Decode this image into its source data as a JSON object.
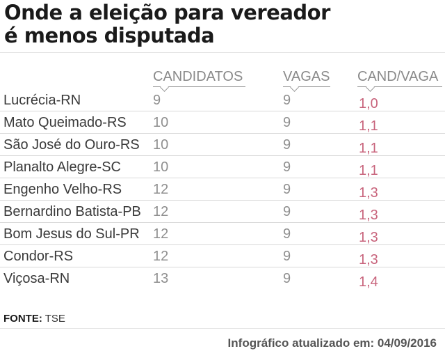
{
  "title_line1": "Onde a eleição para vereador",
  "title_line2": "é menos disputada",
  "chart_data": {
    "type": "table",
    "columns": [
      "",
      "CANDIDATOS",
      "VAGAS",
      "CAND/VAGA"
    ],
    "rows": [
      {
        "city": "Lucrécia-RN",
        "candidatos": "9",
        "vagas": "9",
        "cand_vaga": "1,0"
      },
      {
        "city": "Mato Queimado-RS",
        "candidatos": "10",
        "vagas": "9",
        "cand_vaga": "1,1"
      },
      {
        "city": "São José do Ouro-RS",
        "candidatos": "10",
        "vagas": "9",
        "cand_vaga": "1,1"
      },
      {
        "city": "Planalto Alegre-SC",
        "candidatos": "10",
        "vagas": "9",
        "cand_vaga": "1,1"
      },
      {
        "city": "Engenho Velho-RS",
        "candidatos": "12",
        "vagas": "9",
        "cand_vaga": "1,3"
      },
      {
        "city": "Bernardino Batista-PB",
        "candidatos": "12",
        "vagas": "9",
        "cand_vaga": "1,3"
      },
      {
        "city": "Bom Jesus do Sul-PR",
        "candidatos": "12",
        "vagas": "9",
        "cand_vaga": "1,3"
      },
      {
        "city": "Condor-RS",
        "candidatos": "12",
        "vagas": "9",
        "cand_vaga": "1,3"
      },
      {
        "city": "Viçosa-RN",
        "candidatos": "13",
        "vagas": "9",
        "cand_vaga": "1,4"
      }
    ]
  },
  "source_label": "FONTE:",
  "source_value": "TSE",
  "footer": "Infográfico atualizado em: 04/09/2016",
  "colors": {
    "ratio": "#c8647c",
    "muted": "#8f8f8f",
    "text": "#3a3a3a"
  }
}
